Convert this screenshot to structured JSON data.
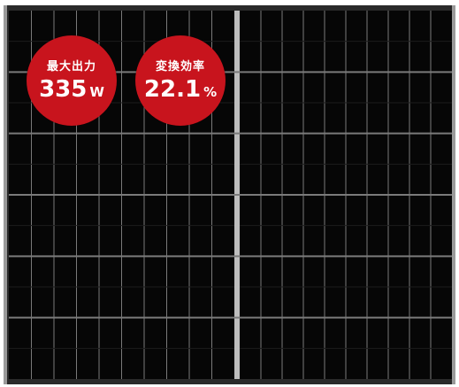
{
  "badges": [
    {
      "label": "最大出力",
      "value": "335",
      "unit": "W"
    },
    {
      "label": "変換効率",
      "value": "22.1",
      "unit": "%"
    }
  ],
  "colors": {
    "badge": "#c8141d",
    "frame": "#2a2a2a",
    "cell": "#060606",
    "grid": "#7a7a7a",
    "center_gap": "#bdbdbd"
  }
}
